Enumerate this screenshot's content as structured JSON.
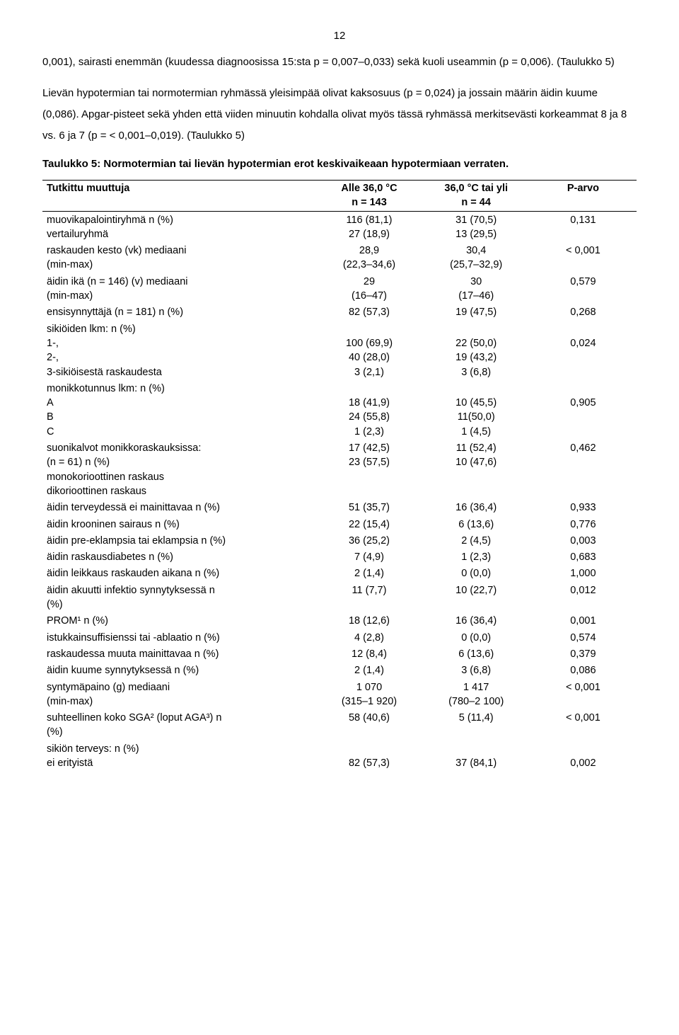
{
  "page_number": "12",
  "paragraph_a": "0,001), sairasti enemmän (kuudessa diagnoosissa 15:sta p = 0,007–0,033) sekä kuoli useammin (p = 0,006). (Taulukko 5)",
  "paragraph_b": "Lievän hypotermian tai normotermian ryhmässä yleisimpää olivat kaksosuus (p = 0,024) ja jossain määrin äidin kuume (0,086). Apgar-pisteet sekä yhden että viiden minuutin kohdalla olivat myös tässä ryhmässä merkitsevästi korkeammat 8 ja 8 vs. 6 ja 7 (p = < 0,001–0,019). (Taulukko 5)",
  "table_caption": "Taulukko 5: Normotermian tai lievän hypotermian erot keskivaikeaan hypotermiaan verraten.",
  "headers": {
    "variable": "Tutkittu muuttuja",
    "col1_l1": "Alle 36,0 °C",
    "col1_l2": "n = 143",
    "col2_l1": "36,0 °C tai yli",
    "col2_l2": "n = 44",
    "pval": "P-arvo"
  },
  "rows": [
    {
      "label": "muovikapalointiryhmä n (%)\nvertailuryhmä",
      "v1": "116 (81,1)\n27 (18,9)",
      "v2": "31 (70,5)\n13 (29,5)",
      "p": "0,131"
    },
    {
      "label": "raskauden kesto (vk) mediaani\n(min-max)",
      "v1": "28,9\n(22,3–34,6)",
      "v2": "30,4\n(25,7–32,9)",
      "p": "< 0,001"
    },
    {
      "label": "äidin ikä (n = 146) (v) mediaani\n(min-max)",
      "v1": "29\n(16–47)",
      "v2": "30\n(17–46)",
      "p": "0,579"
    },
    {
      "label": "ensisynnyttäjä (n = 181) n (%)",
      "v1": "82 (57,3)",
      "v2": "19 (47,5)",
      "p": "0,268"
    },
    {
      "label": "sikiöiden lkm: n (%)\n1-,\n2-,\n3-sikiöisestä raskaudesta",
      "v1": "\n100 (69,9)\n40 (28,0)\n3 (2,1)",
      "v2": "\n22 (50,0)\n19 (43,2)\n3 (6,8)",
      "p": "\n0,024"
    },
    {
      "label": "monikkotunnus lkm: n (%)\nA\nB\nC",
      "v1": "\n18 (41,9)\n24 (55,8)\n1 (2,3)",
      "v2": "\n10 (45,5)\n11(50,0)\n1 (4,5)",
      "p": "\n0,905"
    },
    {
      "label": "suonikalvot monikkoraskauksissa:\n(n = 61) n (%)\nmonokorioottinen raskaus\ndikorioottinen raskaus",
      "v1": "17 (42,5)\n23 (57,5)",
      "v2": "11 (52,4)\n10 (47,6)",
      "p": "0,462"
    },
    {
      "label": "äidin terveydessä ei mainittavaa n (%)",
      "v1": "51 (35,7)",
      "v2": "16 (36,4)",
      "p": "0,933"
    },
    {
      "label": "äidin krooninen sairaus n (%)",
      "v1": "22 (15,4)",
      "v2": "6 (13,6)",
      "p": "0,776"
    },
    {
      "label": "äidin pre-eklampsia tai eklampsia n (%)",
      "v1": "36 (25,2)",
      "v2": "2 (4,5)",
      "p": "0,003"
    },
    {
      "label": "äidin raskausdiabetes n (%)",
      "v1": "7 (4,9)",
      "v2": "1 (2,3)",
      "p": "0,683"
    },
    {
      "label": "äidin leikkaus raskauden aikana n (%)",
      "v1": "2 (1,4)",
      "v2": "0 (0,0)",
      "p": "1,000"
    },
    {
      "label": "äidin akuutti infektio synnytyksessä n\n(%)",
      "v1": "11 (7,7)",
      "v2": "10 (22,7)",
      "p": "0,012"
    },
    {
      "label": "PROM¹ n (%)",
      "v1": "18 (12,6)",
      "v2": "16 (36,4)",
      "p": "0,001"
    },
    {
      "label": "istukkainsuffisienssi tai -ablaatio n (%)",
      "v1": "4 (2,8)",
      "v2": "0 (0,0)",
      "p": "0,574"
    },
    {
      "label": "raskaudessa muuta mainittavaa n (%)",
      "v1": "12 (8,4)",
      "v2": "6 (13,6)",
      "p": "0,379"
    },
    {
      "label": "äidin kuume synnytyksessä n (%)",
      "v1": "2 (1,4)",
      "v2": "3 (6,8)",
      "p": "0,086"
    },
    {
      "label": "syntymäpaino (g) mediaani\n(min-max)",
      "v1": "1 070\n(315–1 920)",
      "v2": "1 417\n(780–2 100)",
      "p": "< 0,001"
    },
    {
      "label": "suhteellinen koko SGA² (loput AGA³) n\n(%)",
      "v1": "58 (40,6)",
      "v2": "5 (11,4)",
      "p": "< 0,001"
    },
    {
      "label": "sikiön terveys: n (%)\nei erityistä",
      "v1": "\n82 (57,3)",
      "v2": "\n37 (84,1)",
      "p": "\n0,002"
    }
  ]
}
